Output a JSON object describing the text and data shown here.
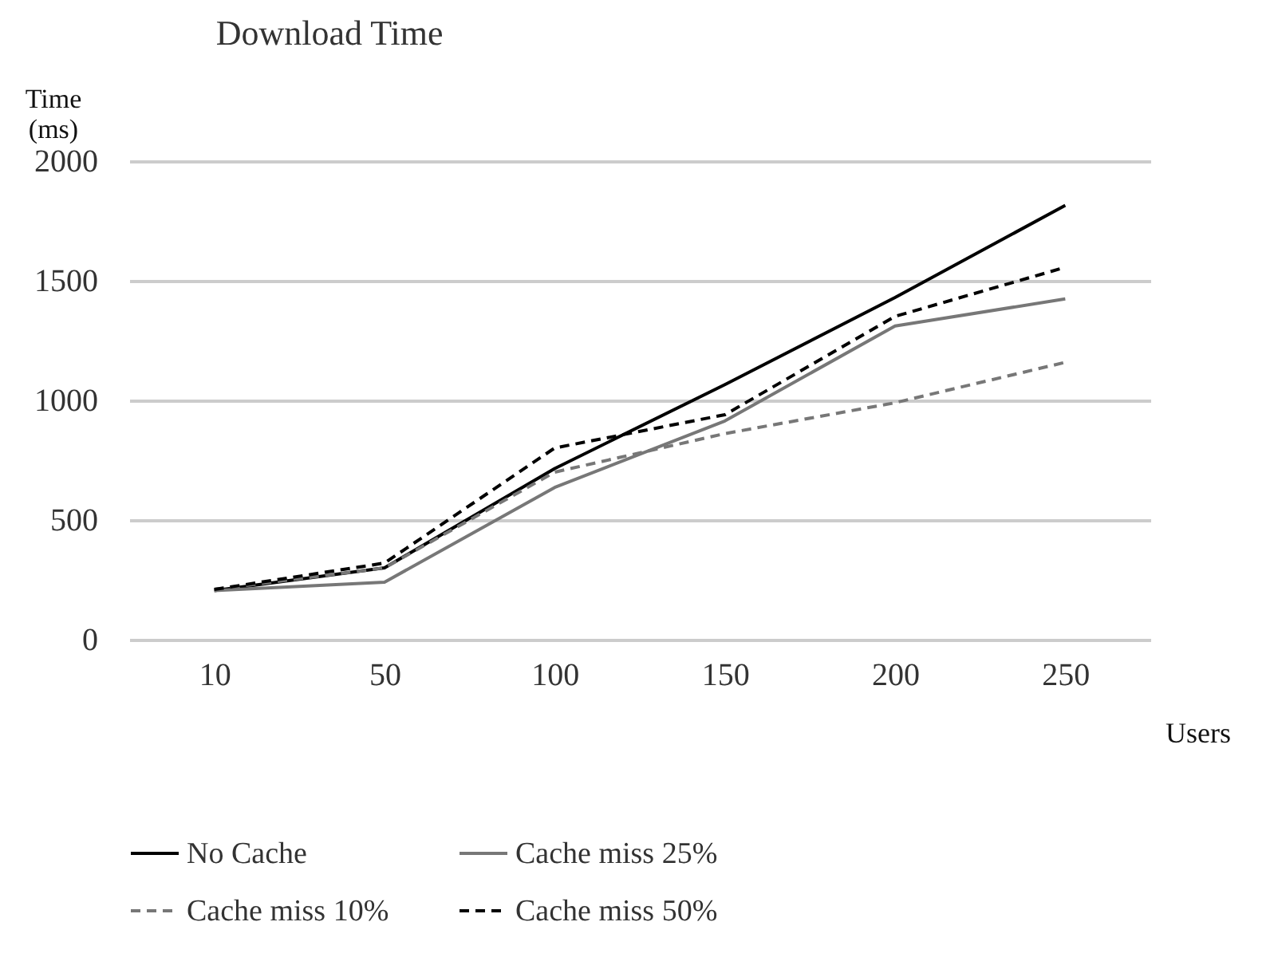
{
  "chart_data": {
    "type": "line",
    "title": "Download Time",
    "xlabel": "Users",
    "ylabel": "Time (ms)",
    "categories": [
      "10",
      "50",
      "100",
      "150",
      "200",
      "250"
    ],
    "series": [
      {
        "name": "No Cache",
        "color": "#000000",
        "line_style": "solid",
        "values": [
          205,
          300,
          715,
          1066,
          1430,
          1815
        ]
      },
      {
        "name": "Cache miss 25%",
        "color": "#777777",
        "line_style": "solid",
        "values": [
          205,
          240,
          636,
          914,
          1311,
          1424
        ]
      },
      {
        "name": "Cache miss 10%",
        "color": "#777777",
        "line_style": "dashed",
        "values": [
          210,
          300,
          700,
          861,
          990,
          1159
        ]
      },
      {
        "name": "Cache miss 50%",
        "color": "#000000",
        "line_style": "dashed",
        "values": [
          210,
          320,
          801,
          940,
          1351,
          1556
        ]
      }
    ],
    "ylim": [
      0,
      2000
    ],
    "yticks": [
      0,
      500,
      1000,
      1500,
      2000
    ],
    "grid": "y",
    "legend": "bottom"
  }
}
